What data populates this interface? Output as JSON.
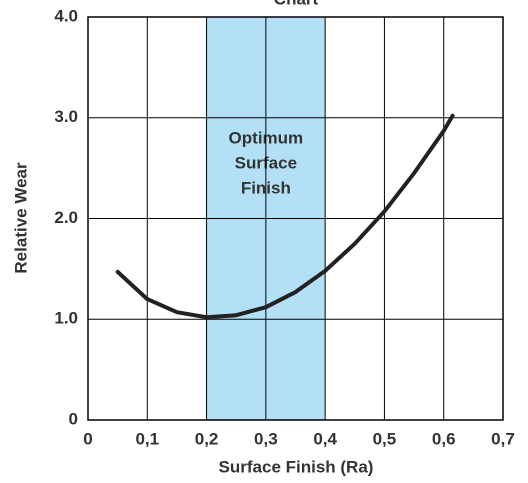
{
  "chart_data": {
    "type": "line",
    "title": "Chart",
    "x_label": "Surface Finish (Ra)",
    "y_label": "Relative Wear",
    "x": [
      0.05,
      0.1,
      0.15,
      0.2,
      0.25,
      0.3,
      0.35,
      0.4,
      0.45,
      0.5,
      0.55,
      0.6,
      0.615
    ],
    "series": [
      {
        "name": "Relative Wear",
        "color": "#222222",
        "values": [
          1.47,
          1.2,
          1.07,
          1.02,
          1.04,
          1.12,
          1.27,
          1.48,
          1.75,
          2.07,
          2.45,
          2.87,
          3.02
        ]
      }
    ],
    "xlim": [
      0,
      0.7
    ],
    "xticks": [
      0,
      {
        "value": 0.1,
        "label": "0,1"
      },
      {
        "value": 0.2,
        "label": "0,2"
      },
      {
        "value": 0.3,
        "label": "0,3"
      },
      {
        "value": 0.4,
        "label": "0,4"
      },
      {
        "value": 0.5,
        "label": "0,5"
      },
      {
        "value": 0.6,
        "label": "0,6"
      },
      {
        "value": 0.7,
        "label": "0,7"
      }
    ],
    "ylim": [
      0,
      4
    ],
    "yticks": [
      0,
      {
        "value": 1,
        "label": "1.0"
      },
      {
        "value": 2,
        "label": "2.0"
      },
      {
        "value": 3,
        "label": "3.0"
      },
      {
        "value": 4,
        "label": "4.0"
      }
    ],
    "grid": true,
    "highlight": {
      "x": [
        0.2,
        0.4
      ],
      "color": "#b3e0f7",
      "label": [
        "Optimum",
        "Surface",
        "Finish"
      ]
    }
  }
}
